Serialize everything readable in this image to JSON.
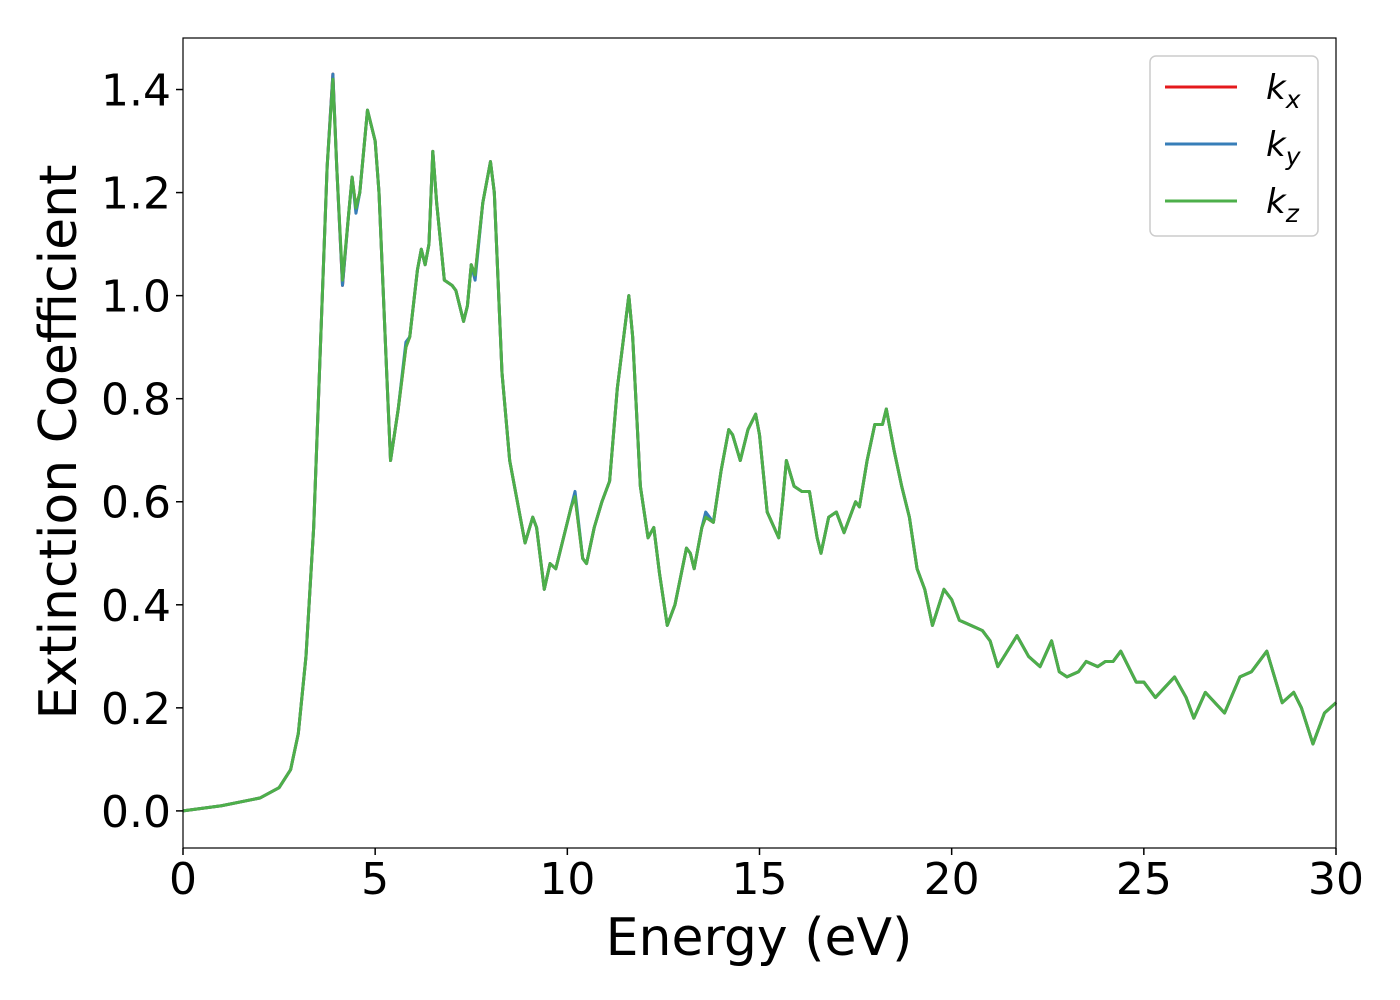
{
  "chart_data": {
    "type": "line",
    "xlabel": "Energy (eV)",
    "ylabel": "Extinction Coefficient",
    "xlim": [
      0,
      30
    ],
    "xticks": [
      0,
      5,
      10,
      15,
      20,
      25,
      30
    ],
    "ylim": [
      -0.072,
      1.5
    ],
    "yticks": [
      {
        "value": 0,
        "label": "0.0"
      },
      0.2,
      0.4,
      0.6,
      0.8,
      {
        "value": 1,
        "label": "1.0"
      },
      1.2,
      1.4
    ],
    "legend": "upper right",
    "x": [
      0,
      1,
      2,
      2.5,
      2.8,
      3.0,
      3.2,
      3.4,
      3.6,
      3.75,
      3.9,
      4.0,
      4.15,
      4.3,
      4.4,
      4.5,
      4.6,
      4.8,
      5.0,
      5.1,
      5.3,
      5.4,
      5.6,
      5.8,
      5.9,
      6.1,
      6.2,
      6.3,
      6.4,
      6.5,
      6.6,
      6.8,
      7.0,
      7.1,
      7.3,
      7.4,
      7.5,
      7.6,
      7.8,
      8.0,
      8.1,
      8.3,
      8.5,
      8.7,
      8.9,
      9.1,
      9.2,
      9.4,
      9.55,
      9.7,
      9.9,
      10.1,
      10.2,
      10.4,
      10.5,
      10.7,
      10.9,
      11.1,
      11.3,
      11.6,
      11.7,
      11.9,
      12.1,
      12.25,
      12.4,
      12.6,
      12.8,
      13.1,
      13.2,
      13.3,
      13.5,
      13.6,
      13.8,
      14.0,
      14.2,
      14.3,
      14.5,
      14.7,
      14.9,
      15.0,
      15.2,
      15.5,
      15.6,
      15.7,
      15.9,
      16.1,
      16.3,
      16.5,
      16.6,
      16.8,
      17.0,
      17.2,
      17.5,
      17.6,
      17.8,
      18.0,
      18.2,
      18.3,
      18.5,
      18.7,
      18.9,
      19.1,
      19.3,
      19.5,
      19.8,
      20.0,
      20.2,
      20.5,
      20.8,
      21.0,
      21.2,
      21.7,
      22.0,
      22.3,
      22.6,
      22.8,
      23.0,
      23.3,
      23.5,
      23.8,
      24.0,
      24.2,
      24.4,
      24.8,
      25.0,
      25.3,
      25.8,
      26.1,
      26.3,
      26.6,
      27.1,
      27.5,
      27.8,
      28.2,
      28.4,
      28.6,
      28.9,
      29.1,
      29.4,
      29.7,
      30.0
    ],
    "series": [
      {
        "name": "k_x",
        "color": "#e41a1c",
        "values": [
          0,
          0.01,
          0.025,
          0.045,
          0.08,
          0.15,
          0.3,
          0.55,
          0.95,
          1.25,
          1.43,
          1.25,
          1.02,
          1.15,
          1.23,
          1.17,
          1.2,
          1.36,
          1.3,
          1.2,
          0.85,
          0.68,
          0.78,
          0.9,
          0.92,
          1.05,
          1.09,
          1.06,
          1.1,
          1.28,
          1.18,
          1.03,
          1.02,
          1.01,
          0.95,
          0.98,
          1.06,
          1.04,
          1.18,
          1.26,
          1.2,
          0.85,
          0.68,
          0.6,
          0.52,
          0.57,
          0.55,
          0.43,
          0.48,
          0.47,
          0.53,
          0.59,
          0.61,
          0.49,
          0.48,
          0.55,
          0.6,
          0.64,
          0.82,
          1.0,
          0.92,
          0.63,
          0.53,
          0.55,
          0.46,
          0.36,
          0.4,
          0.51,
          0.5,
          0.47,
          0.55,
          0.57,
          0.56,
          0.66,
          0.74,
          0.73,
          0.68,
          0.74,
          0.77,
          0.73,
          0.58,
          0.53,
          0.6,
          0.68,
          0.63,
          0.62,
          0.62,
          0.53,
          0.5,
          0.57,
          0.58,
          0.54,
          0.6,
          0.59,
          0.68,
          0.75,
          0.75,
          0.78,
          0.7,
          0.63,
          0.57,
          0.47,
          0.43,
          0.36,
          0.43,
          0.41,
          0.37,
          0.36,
          0.35,
          0.33,
          0.28,
          0.34,
          0.3,
          0.28,
          0.33,
          0.27,
          0.26,
          0.27,
          0.29,
          0.28,
          0.29,
          0.29,
          0.31,
          0.25,
          0.25,
          0.22,
          0.26,
          0.22,
          0.18,
          0.23,
          0.19,
          0.26,
          0.27,
          0.31,
          0.26,
          0.21,
          0.23,
          0.2,
          0.13,
          0.19,
          0.21
        ]
      },
      {
        "name": "k_y",
        "color": "#377eb8",
        "values": [
          0,
          0.01,
          0.025,
          0.045,
          0.08,
          0.15,
          0.3,
          0.55,
          0.95,
          1.25,
          1.43,
          1.25,
          1.02,
          1.15,
          1.23,
          1.16,
          1.2,
          1.36,
          1.3,
          1.2,
          0.85,
          0.68,
          0.78,
          0.91,
          0.92,
          1.05,
          1.09,
          1.06,
          1.1,
          1.28,
          1.18,
          1.03,
          1.02,
          1.01,
          0.95,
          0.98,
          1.06,
          1.03,
          1.18,
          1.26,
          1.2,
          0.85,
          0.68,
          0.6,
          0.52,
          0.57,
          0.55,
          0.43,
          0.48,
          0.47,
          0.53,
          0.59,
          0.62,
          0.49,
          0.48,
          0.55,
          0.6,
          0.64,
          0.82,
          1.0,
          0.92,
          0.63,
          0.53,
          0.55,
          0.46,
          0.36,
          0.4,
          0.51,
          0.5,
          0.47,
          0.55,
          0.58,
          0.56,
          0.66,
          0.74,
          0.73,
          0.68,
          0.74,
          0.77,
          0.73,
          0.58,
          0.53,
          0.6,
          0.68,
          0.63,
          0.62,
          0.62,
          0.53,
          0.5,
          0.57,
          0.58,
          0.54,
          0.6,
          0.59,
          0.68,
          0.75,
          0.75,
          0.78,
          0.7,
          0.63,
          0.57,
          0.47,
          0.43,
          0.36,
          0.43,
          0.41,
          0.37,
          0.36,
          0.35,
          0.33,
          0.28,
          0.34,
          0.3,
          0.28,
          0.33,
          0.27,
          0.26,
          0.27,
          0.29,
          0.28,
          0.29,
          0.29,
          0.31,
          0.25,
          0.25,
          0.22,
          0.26,
          0.22,
          0.18,
          0.23,
          0.19,
          0.26,
          0.27,
          0.31,
          0.26,
          0.21,
          0.23,
          0.2,
          0.13,
          0.19,
          0.21
        ]
      },
      {
        "name": "k_z",
        "color": "#4daf4a",
        "values": [
          0,
          0.01,
          0.025,
          0.045,
          0.08,
          0.15,
          0.3,
          0.55,
          0.95,
          1.25,
          1.42,
          1.25,
          1.03,
          1.15,
          1.23,
          1.17,
          1.2,
          1.36,
          1.3,
          1.2,
          0.85,
          0.68,
          0.78,
          0.9,
          0.92,
          1.05,
          1.09,
          1.06,
          1.1,
          1.28,
          1.18,
          1.03,
          1.02,
          1.01,
          0.95,
          0.98,
          1.06,
          1.04,
          1.18,
          1.26,
          1.2,
          0.85,
          0.68,
          0.6,
          0.52,
          0.57,
          0.55,
          0.43,
          0.48,
          0.47,
          0.53,
          0.59,
          0.61,
          0.49,
          0.48,
          0.55,
          0.6,
          0.64,
          0.82,
          1.0,
          0.92,
          0.63,
          0.53,
          0.55,
          0.46,
          0.36,
          0.4,
          0.51,
          0.5,
          0.47,
          0.55,
          0.57,
          0.56,
          0.66,
          0.74,
          0.73,
          0.68,
          0.74,
          0.77,
          0.73,
          0.58,
          0.53,
          0.6,
          0.68,
          0.63,
          0.62,
          0.62,
          0.53,
          0.5,
          0.57,
          0.58,
          0.54,
          0.6,
          0.59,
          0.68,
          0.75,
          0.75,
          0.78,
          0.7,
          0.63,
          0.57,
          0.47,
          0.43,
          0.36,
          0.43,
          0.41,
          0.37,
          0.36,
          0.35,
          0.33,
          0.28,
          0.34,
          0.3,
          0.28,
          0.33,
          0.27,
          0.26,
          0.27,
          0.29,
          0.28,
          0.29,
          0.29,
          0.31,
          0.25,
          0.25,
          0.22,
          0.26,
          0.22,
          0.18,
          0.23,
          0.19,
          0.26,
          0.27,
          0.31,
          0.26,
          0.21,
          0.23,
          0.2,
          0.13,
          0.19,
          0.21
        ]
      }
    ]
  }
}
